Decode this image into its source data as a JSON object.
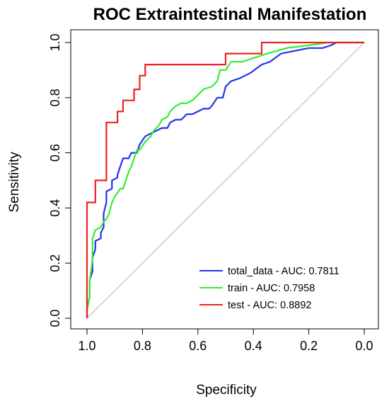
{
  "chart_data": {
    "type": "line",
    "title": "ROC Extraintestinal Manifestation",
    "xlabel": "Specificity",
    "ylabel": "Sensitivity",
    "xlim": [
      1.0,
      0.0
    ],
    "ylim": [
      0.0,
      1.0
    ],
    "x_reversed": true,
    "x_ticks": [
      "1.0",
      "0.8",
      "0.6",
      "0.4",
      "0.2",
      "0.0"
    ],
    "y_ticks": [
      "0.0",
      "0.2",
      "0.4",
      "0.6",
      "0.8",
      "1.0"
    ],
    "grid": false,
    "legend_position": "bottom-right",
    "reference_line": {
      "from": [
        1.0,
        0.0
      ],
      "to": [
        0.0,
        1.0
      ],
      "color": "#bebebe"
    },
    "series": [
      {
        "name": "total_data - AUC:  0.7811",
        "color": "#2233ee",
        "points": [
          [
            1.0,
            0.0
          ],
          [
            1.0,
            0.03
          ],
          [
            0.99,
            0.08
          ],
          [
            0.99,
            0.14
          ],
          [
            0.98,
            0.17
          ],
          [
            0.98,
            0.22
          ],
          [
            0.97,
            0.25
          ],
          [
            0.97,
            0.28
          ],
          [
            0.95,
            0.29
          ],
          [
            0.95,
            0.31
          ],
          [
            0.94,
            0.33
          ],
          [
            0.94,
            0.38
          ],
          [
            0.93,
            0.42
          ],
          [
            0.93,
            0.46
          ],
          [
            0.91,
            0.47
          ],
          [
            0.91,
            0.5
          ],
          [
            0.89,
            0.51
          ],
          [
            0.89,
            0.52
          ],
          [
            0.88,
            0.55
          ],
          [
            0.87,
            0.58
          ],
          [
            0.85,
            0.58
          ],
          [
            0.84,
            0.6
          ],
          [
            0.82,
            0.6
          ],
          [
            0.81,
            0.63
          ],
          [
            0.79,
            0.66
          ],
          [
            0.77,
            0.67
          ],
          [
            0.75,
            0.68
          ],
          [
            0.73,
            0.69
          ],
          [
            0.71,
            0.69
          ],
          [
            0.7,
            0.71
          ],
          [
            0.68,
            0.72
          ],
          [
            0.66,
            0.72
          ],
          [
            0.64,
            0.74
          ],
          [
            0.62,
            0.74
          ],
          [
            0.6,
            0.75
          ],
          [
            0.58,
            0.76
          ],
          [
            0.56,
            0.76
          ],
          [
            0.55,
            0.77
          ],
          [
            0.53,
            0.8
          ],
          [
            0.51,
            0.8
          ],
          [
            0.5,
            0.84
          ],
          [
            0.48,
            0.86
          ],
          [
            0.45,
            0.87
          ],
          [
            0.43,
            0.88
          ],
          [
            0.41,
            0.89
          ],
          [
            0.37,
            0.92
          ],
          [
            0.34,
            0.93
          ],
          [
            0.3,
            0.96
          ],
          [
            0.25,
            0.97
          ],
          [
            0.2,
            0.98
          ],
          [
            0.15,
            0.98
          ],
          [
            0.12,
            0.99
          ],
          [
            0.1,
            1.0
          ],
          [
            0.0,
            1.0
          ]
        ]
      },
      {
        "name": "train - AUC:  0.7958",
        "color": "#33ee33",
        "points": [
          [
            1.0,
            0.0
          ],
          [
            1.0,
            0.03
          ],
          [
            0.99,
            0.08
          ],
          [
            0.99,
            0.14
          ],
          [
            0.98,
            0.21
          ],
          [
            0.98,
            0.29
          ],
          [
            0.97,
            0.32
          ],
          [
            0.95,
            0.33
          ],
          [
            0.94,
            0.35
          ],
          [
            0.93,
            0.36
          ],
          [
            0.92,
            0.38
          ],
          [
            0.91,
            0.42
          ],
          [
            0.9,
            0.44
          ],
          [
            0.88,
            0.47
          ],
          [
            0.87,
            0.47
          ],
          [
            0.86,
            0.5
          ],
          [
            0.85,
            0.53
          ],
          [
            0.84,
            0.55
          ],
          [
            0.83,
            0.58
          ],
          [
            0.82,
            0.61
          ],
          [
            0.81,
            0.61
          ],
          [
            0.79,
            0.64
          ],
          [
            0.77,
            0.66
          ],
          [
            0.76,
            0.68
          ],
          [
            0.74,
            0.7
          ],
          [
            0.73,
            0.72
          ],
          [
            0.71,
            0.73
          ],
          [
            0.7,
            0.75
          ],
          [
            0.68,
            0.77
          ],
          [
            0.66,
            0.78
          ],
          [
            0.64,
            0.78
          ],
          [
            0.62,
            0.79
          ],
          [
            0.6,
            0.81
          ],
          [
            0.58,
            0.83
          ],
          [
            0.55,
            0.84
          ],
          [
            0.53,
            0.86
          ],
          [
            0.52,
            0.9
          ],
          [
            0.5,
            0.9
          ],
          [
            0.48,
            0.93
          ],
          [
            0.44,
            0.93
          ],
          [
            0.41,
            0.94
          ],
          [
            0.38,
            0.95
          ],
          [
            0.35,
            0.96
          ],
          [
            0.28,
            0.98
          ],
          [
            0.2,
            0.99
          ],
          [
            0.13,
            1.0
          ],
          [
            0.0,
            1.0
          ]
        ]
      },
      {
        "name": "test - AUC:  0.8892",
        "color": "#ee2222",
        "points": [
          [
            1.0,
            0.0
          ],
          [
            1.0,
            0.42
          ],
          [
            0.97,
            0.42
          ],
          [
            0.97,
            0.5
          ],
          [
            0.93,
            0.5
          ],
          [
            0.93,
            0.71
          ],
          [
            0.89,
            0.71
          ],
          [
            0.89,
            0.75
          ],
          [
            0.87,
            0.75
          ],
          [
            0.87,
            0.79
          ],
          [
            0.83,
            0.79
          ],
          [
            0.83,
            0.83
          ],
          [
            0.81,
            0.83
          ],
          [
            0.81,
            0.88
          ],
          [
            0.79,
            0.88
          ],
          [
            0.79,
            0.92
          ],
          [
            0.5,
            0.92
          ],
          [
            0.5,
            0.96
          ],
          [
            0.37,
            0.96
          ],
          [
            0.37,
            1.0
          ],
          [
            0.0,
            1.0
          ]
        ]
      }
    ]
  }
}
